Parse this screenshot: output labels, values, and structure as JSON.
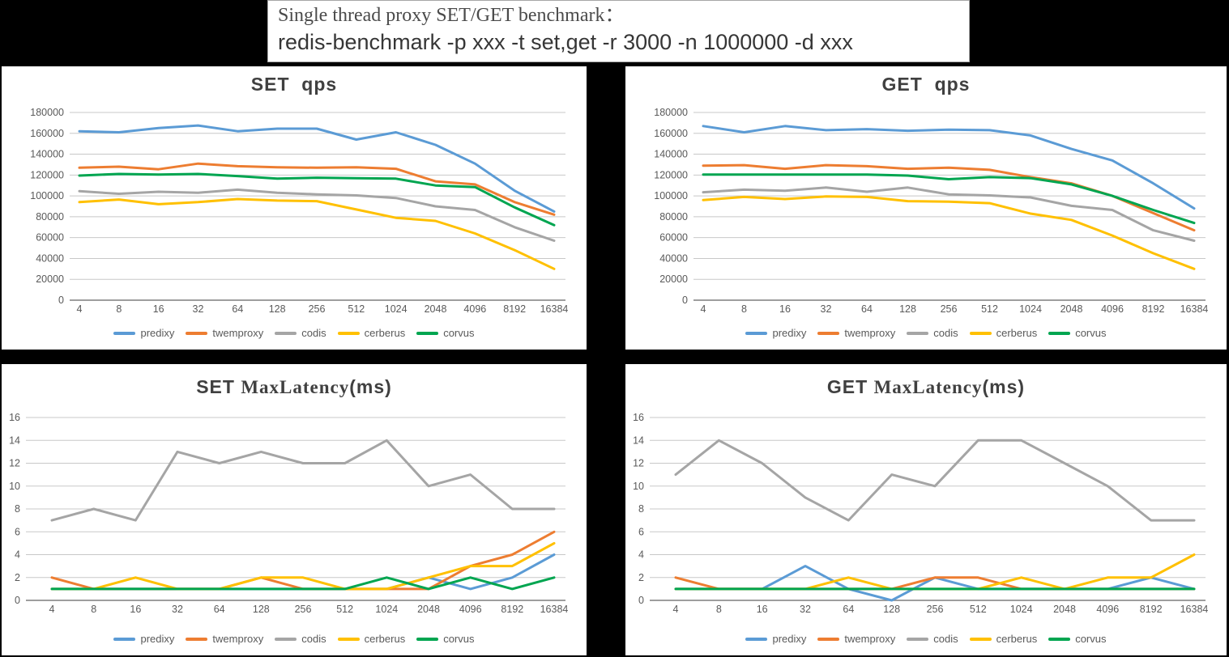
{
  "banner": {
    "line1": "Single thread proxy SET/GET benchmark：",
    "line2": "redis-benchmark -p xxx -t set,get -r 3000 -n 1000000 -d xxx"
  },
  "colors": {
    "background": "#000000",
    "panel": "#FFFFFF",
    "grid": "#C8C8C8",
    "axis": "#7F7F7F",
    "tick_text": "#595959",
    "title_text": "#404040",
    "predixy": "#5B9BD5",
    "twemproxy": "#ED7D31",
    "codis": "#A5A5A5",
    "cerberus": "#FFC000",
    "corvus": "#00A550"
  },
  "chart_data": [
    {
      "id": "set-qps",
      "type": "line",
      "kind": "qps",
      "title_parts": [
        {
          "t": "SET  qps",
          "f": "sans"
        }
      ],
      "xlabel": "",
      "ylabel": "",
      "grid": true,
      "legend_position": "bottom",
      "ylim": [
        0,
        180000
      ],
      "ytick_step": 20000,
      "ytick_labels": [
        "180000",
        "160000",
        "140000",
        "120000",
        "100000",
        "80000",
        "60000",
        "40000",
        "20000",
        "0"
      ],
      "categories": [
        "4",
        "8",
        "16",
        "32",
        "64",
        "128",
        "256",
        "512",
        "1024",
        "2048",
        "4096",
        "8192",
        "16384"
      ],
      "series": [
        {
          "name": "predixy",
          "color": "#5B9BD5",
          "values": [
            162000,
            161000,
            165000,
            167500,
            162000,
            164500,
            164500,
            154000,
            161000,
            149000,
            131000,
            105000,
            85000
          ]
        },
        {
          "name": "twemproxy",
          "color": "#ED7D31",
          "values": [
            127000,
            128000,
            125500,
            131000,
            128500,
            127500,
            127000,
            127500,
            126000,
            114000,
            111000,
            94000,
            82000
          ]
        },
        {
          "name": "codis",
          "color": "#A5A5A5",
          "values": [
            104500,
            102000,
            104000,
            103000,
            106000,
            103000,
            101500,
            100500,
            98000,
            90000,
            86500,
            70000,
            57000
          ]
        },
        {
          "name": "cerberus",
          "color": "#FFC000",
          "values": [
            94000,
            96500,
            92000,
            94000,
            97000,
            95500,
            95000,
            87000,
            79000,
            76000,
            64000,
            48000,
            30000
          ]
        },
        {
          "name": "corvus",
          "color": "#00A550",
          "values": [
            119500,
            121000,
            120500,
            121000,
            119000,
            116500,
            117500,
            117000,
            116500,
            110000,
            108500,
            89000,
            72000
          ]
        }
      ]
    },
    {
      "id": "get-qps",
      "type": "line",
      "kind": "qps",
      "title_parts": [
        {
          "t": "GET  qps",
          "f": "sans"
        }
      ],
      "xlabel": "",
      "ylabel": "",
      "grid": true,
      "legend_position": "bottom",
      "ylim": [
        0,
        180000
      ],
      "ytick_step": 20000,
      "ytick_labels": [
        "180000",
        "160000",
        "140000",
        "120000",
        "100000",
        "80000",
        "60000",
        "40000",
        "20000",
        "0"
      ],
      "categories": [
        "4",
        "8",
        "16",
        "32",
        "64",
        "128",
        "256",
        "512",
        "1024",
        "2048",
        "4096",
        "8192",
        "16384"
      ],
      "series": [
        {
          "name": "predixy",
          "color": "#5B9BD5",
          "values": [
            167000,
            161000,
            167000,
            163000,
            164000,
            162500,
            163500,
            163000,
            158000,
            145000,
            134000,
            112000,
            88000
          ]
        },
        {
          "name": "twemproxy",
          "color": "#ED7D31",
          "values": [
            129000,
            129500,
            126000,
            129500,
            128500,
            126000,
            127000,
            125000,
            118000,
            112000,
            100000,
            83500,
            67000
          ]
        },
        {
          "name": "codis",
          "color": "#A5A5A5",
          "values": [
            103500,
            106000,
            105000,
            108000,
            104000,
            108000,
            101500,
            100500,
            98500,
            90500,
            86500,
            67000,
            57000
          ]
        },
        {
          "name": "cerberus",
          "color": "#FFC000",
          "values": [
            96000,
            99000,
            97000,
            99500,
            99000,
            95000,
            94500,
            93000,
            83000,
            77000,
            62000,
            45000,
            30000
          ]
        },
        {
          "name": "corvus",
          "color": "#00A550",
          "values": [
            120500,
            120500,
            120500,
            120500,
            120500,
            119500,
            116000,
            118000,
            117000,
            111000,
            100000,
            86500,
            74000
          ]
        }
      ]
    },
    {
      "id": "set-maxlatency",
      "type": "line",
      "kind": "lat",
      "title_parts": [
        {
          "t": "SET ",
          "f": "sans"
        },
        {
          "t": "MaxLatency",
          "f": "serif"
        },
        {
          "t": "(ms)",
          "f": "sans"
        }
      ],
      "xlabel": "",
      "ylabel": "",
      "grid": true,
      "legend_position": "bottom",
      "ylim": [
        0,
        16
      ],
      "ytick_step": 2,
      "ytick_labels": [
        "16",
        "14",
        "12",
        "10",
        "8",
        "6",
        "4",
        "2",
        "0"
      ],
      "categories": [
        "4",
        "8",
        "16",
        "32",
        "64",
        "128",
        "256",
        "512",
        "1024",
        "2048",
        "4096",
        "8192",
        "16384"
      ],
      "series": [
        {
          "name": "predixy",
          "color": "#5B9BD5",
          "values": [
            1,
            1,
            1,
            1,
            1,
            1,
            1,
            1,
            1,
            2,
            1,
            2,
            4
          ]
        },
        {
          "name": "twemproxy",
          "color": "#ED7D31",
          "values": [
            2,
            1,
            1,
            1,
            1,
            2,
            1,
            1,
            1,
            1,
            3,
            4,
            6
          ]
        },
        {
          "name": "codis",
          "color": "#A5A5A5",
          "values": [
            7,
            8,
            7,
            13,
            12,
            13,
            12,
            12,
            14,
            10,
            11,
            8,
            8
          ]
        },
        {
          "name": "cerberus",
          "color": "#FFC000",
          "values": [
            1,
            1,
            2,
            1,
            1,
            2,
            2,
            1,
            1,
            2,
            3,
            3,
            5
          ]
        },
        {
          "name": "corvus",
          "color": "#00A550",
          "values": [
            1,
            1,
            1,
            1,
            1,
            1,
            1,
            1,
            2,
            1,
            2,
            1,
            2
          ]
        }
      ]
    },
    {
      "id": "get-maxlatency",
      "type": "line",
      "kind": "lat",
      "title_parts": [
        {
          "t": "GET ",
          "f": "sans"
        },
        {
          "t": "MaxLatency",
          "f": "serif"
        },
        {
          "t": "(ms)",
          "f": "sans"
        }
      ],
      "xlabel": "",
      "ylabel": "",
      "grid": true,
      "legend_position": "bottom",
      "ylim": [
        0,
        16
      ],
      "ytick_step": 2,
      "ytick_labels": [
        "16",
        "14",
        "12",
        "10",
        "8",
        "6",
        "4",
        "2",
        "0"
      ],
      "categories": [
        "4",
        "8",
        "16",
        "32",
        "64",
        "128",
        "256",
        "512",
        "1024",
        "2048",
        "4096",
        "8192",
        "16384"
      ],
      "series": [
        {
          "name": "predixy",
          "color": "#5B9BD5",
          "values": [
            1,
            1,
            1,
            3,
            1,
            0,
            2,
            1,
            1,
            1,
            1,
            2,
            1
          ]
        },
        {
          "name": "twemproxy",
          "color": "#ED7D31",
          "values": [
            2,
            1,
            1,
            1,
            1,
            1,
            2,
            2,
            1,
            1,
            1,
            1,
            1
          ]
        },
        {
          "name": "codis",
          "color": "#A5A5A5",
          "values": [
            11,
            14,
            12,
            9,
            7,
            11,
            10,
            14,
            14,
            12,
            10,
            7,
            7
          ]
        },
        {
          "name": "cerberus",
          "color": "#FFC000",
          "values": [
            1,
            1,
            1,
            1,
            2,
            1,
            1,
            1,
            2,
            1,
            2,
            2,
            4
          ]
        },
        {
          "name": "corvus",
          "color": "#00A550",
          "values": [
            1,
            1,
            1,
            1,
            1,
            1,
            1,
            1,
            1,
            1,
            1,
            1,
            1
          ]
        }
      ]
    }
  ]
}
